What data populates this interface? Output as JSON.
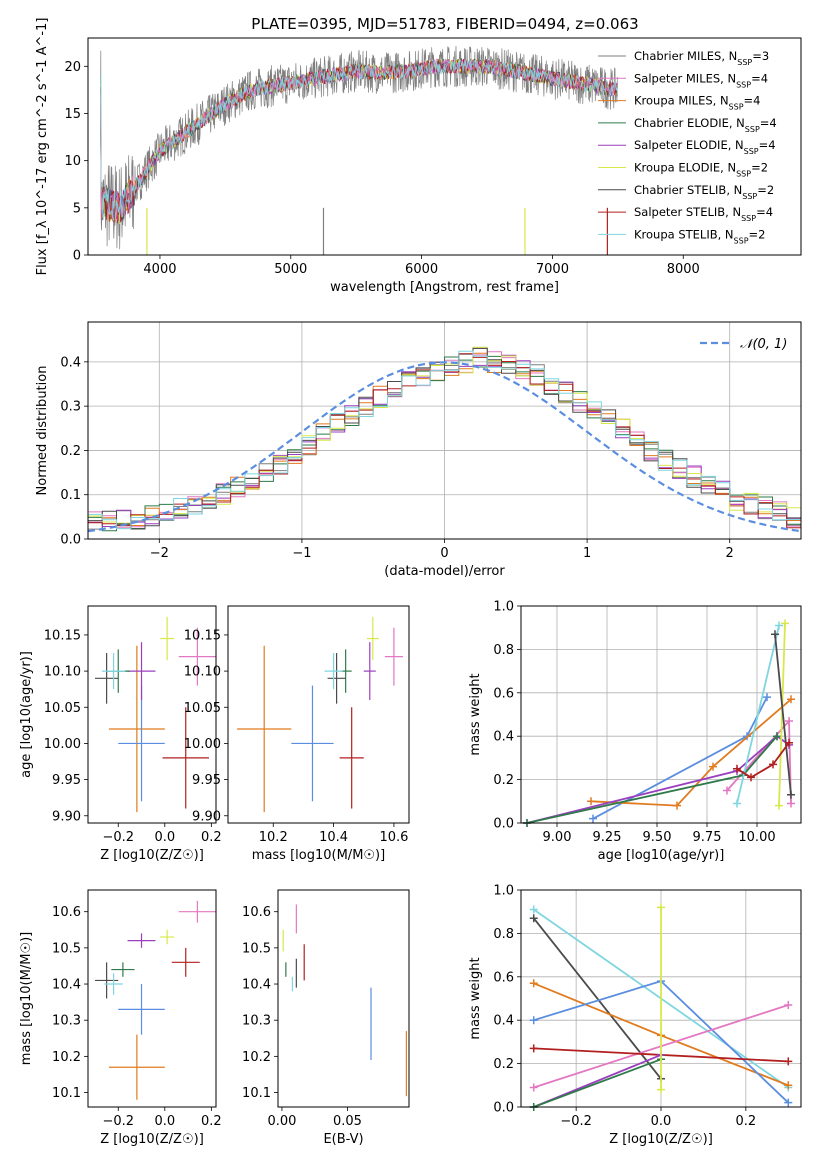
{
  "title": "PLATE=0395, MJD=51783, FIBERID=0494, z=0.063",
  "colors": {
    "Chabrier MILES": "#7f7f7f",
    "Salpeter MILES": "#e377c2",
    "Kroupa MILES": "#e07b1f",
    "Chabrier ELODIE": "#2f7a4a",
    "Salpeter ELODIE": "#9b3fbf",
    "Kroupa ELODIE": "#d8e84a",
    "Chabrier STELIB": "#4b4b4b",
    "Salpeter STELIB": "#b21f1f",
    "Kroupa STELIB": "#7fd6e0",
    "blue": "#5b8ee0"
  },
  "chart_data": [
    {
      "type": "line",
      "title": "PLATE=0395, MJD=51783, FIBERID=0494, z=0.063",
      "xlabel": "wavelength [Angstrom, rest frame]",
      "ylabel": "Flux [f_λ 10^-17 erg cm^-2 s^-1 A^-1]",
      "xlim": [
        3450,
        8900
      ],
      "ylim": [
        0,
        23
      ],
      "xticks": [
        "4000",
        "5000",
        "6000",
        "7000",
        "8000"
      ],
      "yticks": [
        "0",
        "5",
        "10",
        "15",
        "20"
      ],
      "legend_position": "top-right",
      "legend": [
        {
          "label": "Chabrier MILES, N_SSP=3",
          "color": "#7f7f7f"
        },
        {
          "label": "Salpeter MILES, N_SSP=4",
          "color": "#e377c2"
        },
        {
          "label": "Kroupa MILES, N_SSP=4",
          "color": "#e07b1f"
        },
        {
          "label": "Chabrier ELODIE, N_SSP=4",
          "color": "#2f7a4a"
        },
        {
          "label": "Salpeter ELODIE, N_SSP=4",
          "color": "#9b3fbf"
        },
        {
          "label": "Kroupa ELODIE, N_SSP=2",
          "color": "#d8e84a"
        },
        {
          "label": "Chabrier STELIB, N_SSP=2",
          "color": "#4b4b4b"
        },
        {
          "label": "Salpeter STELIB, N_SSP=4",
          "color": "#b21f1f"
        },
        {
          "label": "Kroupa STELIB, N_SSP=2",
          "color": "#7fd6e0"
        }
      ],
      "series_envelope": {
        "x": [
          3550,
          3700,
          3900,
          4000,
          4100,
          4300,
          4500,
          4700,
          4900,
          5100,
          5300,
          5500,
          5700,
          5900,
          6100,
          6300,
          6500,
          6700,
          6900,
          7100,
          7300,
          7500
        ],
        "y": [
          5.5,
          5.0,
          9.0,
          11.0,
          12.0,
          14.0,
          16.0,
          17.5,
          18.0,
          18.5,
          19.0,
          19.5,
          19.3,
          19.5,
          20.0,
          20.0,
          20.0,
          19.5,
          19.0,
          18.5,
          18.0,
          17.5
        ]
      }
    },
    {
      "type": "bar",
      "xlabel": "(data-model)/error",
      "ylabel": "Normed distribution",
      "xlim": [
        -2.5,
        2.5
      ],
      "ylim": [
        0,
        0.49
      ],
      "xticks": [
        "−2",
        "−1",
        "0",
        "1",
        "2"
      ],
      "yticks": [
        "0.0",
        "0.1",
        "0.2",
        "0.3",
        "0.4"
      ],
      "grid": true,
      "legend_position": "top-right",
      "legend": [
        {
          "label": "𝒩(0, 1)",
          "color": "#5b8ee0"
        }
      ],
      "bin_width": 0.1,
      "histogram_envelope": [
        0.04,
        0.04,
        0.04,
        0.045,
        0.05,
        0.06,
        0.07,
        0.08,
        0.09,
        0.1,
        0.115,
        0.13,
        0.15,
        0.17,
        0.19,
        0.21,
        0.235,
        0.26,
        0.28,
        0.3,
        0.32,
        0.34,
        0.36,
        0.37,
        0.38,
        0.39,
        0.4,
        0.41,
        0.4,
        0.39,
        0.38,
        0.37,
        0.35,
        0.33,
        0.31,
        0.29,
        0.27,
        0.25,
        0.22,
        0.2,
        0.18,
        0.16,
        0.14,
        0.12,
        0.11,
        0.09,
        0.08,
        0.07,
        0.06,
        0.05
      ],
      "reference_curve": "N(0,1)"
    },
    {
      "type": "scatter",
      "xlabel": "Z [log10(Z/Z☉)]",
      "ylabel": "age  [log10(age/yr)]",
      "xlim": [
        -0.33,
        0.22
      ],
      "ylim": [
        9.89,
        10.19
      ],
      "xticks": [
        "−0.2",
        "0.0",
        "0.2"
      ],
      "yticks": [
        "9.90",
        "9.95",
        "10.00",
        "10.05",
        "10.10",
        "10.15"
      ],
      "points": [
        {
          "name": "Kroupa MILES",
          "x": -0.12,
          "y": 10.02,
          "ex": 0.12,
          "ey": 0.115,
          "color": "#e07b1f"
        },
        {
          "name": "Blue",
          "x": -0.1,
          "y": 10.0,
          "ex": 0.1,
          "ey": 0.08,
          "color": "#5b8ee0"
        },
        {
          "name": "Salpeter STELIB",
          "x": 0.09,
          "y": 9.98,
          "ex": 0.1,
          "ey": 0.07,
          "color": "#b21f1f"
        },
        {
          "name": "Salpeter ELODIE",
          "x": -0.1,
          "y": 10.1,
          "ex": 0.06,
          "ey": 0.04,
          "color": "#9b3fbf"
        },
        {
          "name": "Chabrier ELODIE",
          "x": -0.2,
          "y": 10.1,
          "ex": 0.05,
          "ey": 0.03,
          "color": "#2f7a4a"
        },
        {
          "name": "Chabrier STELIB",
          "x": -0.25,
          "y": 10.09,
          "ex": 0.05,
          "ey": 0.035,
          "color": "#4b4b4b"
        },
        {
          "name": "Kroupa STELIB",
          "x": -0.22,
          "y": 10.1,
          "ex": 0.05,
          "ey": 0.025,
          "color": "#7fd6e0"
        },
        {
          "name": "Kroupa ELODIE",
          "x": 0.01,
          "y": 10.145,
          "ex": 0.03,
          "ey": 0.03,
          "color": "#d8e84a"
        },
        {
          "name": "Salpeter MILES",
          "x": 0.14,
          "y": 10.12,
          "ex": 0.08,
          "ey": 0.04,
          "color": "#e377c2"
        }
      ]
    },
    {
      "type": "scatter",
      "xlabel": "mass [log10(M/M☉)]",
      "ylabel": "",
      "xlim": [
        10.05,
        10.65
      ],
      "ylim": [
        9.89,
        10.19
      ],
      "xticks": [
        "10.2",
        "10.4",
        "10.6"
      ],
      "yticks": [
        "9.90",
        "9.95",
        "10.00",
        "10.05",
        "10.10",
        "10.15"
      ],
      "points": [
        {
          "name": "Kroupa MILES",
          "x": 10.17,
          "y": 10.02,
          "ex": 0.09,
          "ey": 0.115,
          "color": "#e07b1f"
        },
        {
          "name": "Blue",
          "x": 10.33,
          "y": 10.0,
          "ex": 0.07,
          "ey": 0.08,
          "color": "#5b8ee0"
        },
        {
          "name": "Salpeter STELIB",
          "x": 10.46,
          "y": 9.98,
          "ex": 0.04,
          "ey": 0.07,
          "color": "#b21f1f"
        },
        {
          "name": "Salpeter ELODIE",
          "x": 10.52,
          "y": 10.1,
          "ex": 0.02,
          "ey": 0.04,
          "color": "#9b3fbf"
        },
        {
          "name": "Chabrier ELODIE",
          "x": 10.44,
          "y": 10.1,
          "ex": 0.02,
          "ey": 0.03,
          "color": "#2f7a4a"
        },
        {
          "name": "Chabrier STELIB",
          "x": 10.41,
          "y": 10.09,
          "ex": 0.03,
          "ey": 0.035,
          "color": "#4b4b4b"
        },
        {
          "name": "Kroupa STELIB",
          "x": 10.4,
          "y": 10.1,
          "ex": 0.03,
          "ey": 0.025,
          "color": "#7fd6e0"
        },
        {
          "name": "Kroupa ELODIE",
          "x": 10.53,
          "y": 10.145,
          "ex": 0.02,
          "ey": 0.03,
          "color": "#d8e84a"
        },
        {
          "name": "Salpeter MILES",
          "x": 10.6,
          "y": 10.12,
          "ex": 0.03,
          "ey": 0.04,
          "color": "#e377c2"
        }
      ]
    },
    {
      "type": "line",
      "xlabel": "age  [log10(age/yr)]",
      "ylabel": "mass weight",
      "xlim": [
        8.82,
        10.22
      ],
      "ylim": [
        0,
        1.0
      ],
      "xticks": [
        "9.00",
        "9.25",
        "9.50",
        "9.75",
        "10.00"
      ],
      "yticks": [
        "0.0",
        "0.2",
        "0.4",
        "0.6",
        "0.8",
        "1.0"
      ],
      "grid": true,
      "series": [
        {
          "name": "Blue",
          "color": "#5b8ee0",
          "x": [
            9.18,
            9.95,
            10.05
          ],
          "y": [
            0.02,
            0.4,
            0.58
          ]
        },
        {
          "name": "Kroupa MILES",
          "color": "#e07b1f",
          "x": [
            9.17,
            9.6,
            9.78,
            10.17
          ],
          "y": [
            0.1,
            0.08,
            0.26,
            0.57
          ]
        },
        {
          "name": "Salpeter MILES",
          "color": "#e377c2",
          "x": [
            9.85,
            10.16,
            10.17
          ],
          "y": [
            0.15,
            0.47,
            0.09
          ]
        },
        {
          "name": "Salpeter ELODIE",
          "color": "#9b3fbf",
          "x": [
            8.85,
            9.9,
            10.1,
            10.16
          ],
          "y": [
            0.0,
            0.24,
            0.4,
            0.36
          ]
        },
        {
          "name": "Chabrier ELODIE",
          "color": "#2f7a4a",
          "x": [
            8.85,
            9.93,
            10.1
          ],
          "y": [
            0.0,
            0.22,
            0.4
          ]
        },
        {
          "name": "Kroupa STELIB",
          "color": "#7fd6e0",
          "x": [
            9.9,
            10.11
          ],
          "y": [
            0.09,
            0.91
          ]
        },
        {
          "name": "Kroupa ELODIE",
          "color": "#d8e84a",
          "x": [
            10.11,
            10.14
          ],
          "y": [
            0.08,
            0.92
          ]
        },
        {
          "name": "Chabrier STELIB",
          "color": "#4b4b4b",
          "x": [
            10.09,
            10.17
          ],
          "y": [
            0.87,
            0.13
          ]
        },
        {
          "name": "Salpeter STELIB",
          "color": "#b21f1f",
          "x": [
            9.9,
            9.97,
            10.08,
            10.16
          ],
          "y": [
            0.25,
            0.21,
            0.27,
            0.37
          ]
        }
      ]
    },
    {
      "type": "scatter",
      "xlabel": "Z [log10(Z/Z☉)]",
      "ylabel": "mass [log10(M/M☉)]",
      "xlim": [
        -0.33,
        0.22
      ],
      "ylim": [
        10.06,
        10.66
      ],
      "xticks": [
        "−0.2",
        "0.0",
        "0.2"
      ],
      "yticks": [
        "10.1",
        "10.2",
        "10.3",
        "10.4",
        "10.5",
        "10.6"
      ],
      "points": [
        {
          "name": "Kroupa MILES",
          "x": -0.12,
          "y": 10.17,
          "ex": 0.12,
          "ey": 0.09,
          "color": "#e07b1f"
        },
        {
          "name": "Blue",
          "x": -0.1,
          "y": 10.33,
          "ex": 0.1,
          "ey": 0.07,
          "color": "#5b8ee0"
        },
        {
          "name": "Salpeter STELIB",
          "x": 0.09,
          "y": 10.46,
          "ex": 0.06,
          "ey": 0.04,
          "color": "#b21f1f"
        },
        {
          "name": "Salpeter ELODIE",
          "x": -0.1,
          "y": 10.52,
          "ex": 0.06,
          "ey": 0.02,
          "color": "#9b3fbf"
        },
        {
          "name": "Chabrier ELODIE",
          "x": -0.18,
          "y": 10.44,
          "ex": 0.05,
          "ey": 0.02,
          "color": "#2f7a4a"
        },
        {
          "name": "Chabrier STELIB",
          "x": -0.25,
          "y": 10.41,
          "ex": 0.05,
          "ey": 0.05,
          "color": "#4b4b4b"
        },
        {
          "name": "Kroupa STELIB",
          "x": -0.22,
          "y": 10.4,
          "ex": 0.04,
          "ey": 0.03,
          "color": "#7fd6e0"
        },
        {
          "name": "Kroupa ELODIE",
          "x": 0.01,
          "y": 10.53,
          "ex": 0.03,
          "ey": 0.02,
          "color": "#d8e84a"
        },
        {
          "name": "Salpeter MILES",
          "x": 0.14,
          "y": 10.6,
          "ex": 0.08,
          "ey": 0.03,
          "color": "#e377c2"
        }
      ]
    },
    {
      "type": "scatter",
      "xlabel": "E(B-V)",
      "ylabel": "",
      "xlim": [
        -0.003,
        0.097
      ],
      "ylim": [
        10.06,
        10.66
      ],
      "xticks": [
        "0.00",
        "0.05"
      ],
      "yticks": [
        "10.1",
        "10.2",
        "10.3",
        "10.4",
        "10.5",
        "10.6"
      ],
      "points": [
        {
          "name": "Kroupa MILES",
          "x": 0.095,
          "y": 10.18,
          "ey": 0.09,
          "color": "#e07b1f"
        },
        {
          "name": "Blue",
          "x": 0.068,
          "y": 10.29,
          "ey": 0.1,
          "color": "#5b8ee0"
        },
        {
          "name": "Salpeter STELIB",
          "x": 0.017,
          "y": 10.46,
          "ey": 0.05,
          "color": "#b21f1f"
        },
        {
          "name": "Salpeter MILES",
          "x": 0.011,
          "y": 10.58,
          "ey": 0.04,
          "color": "#e377c2"
        },
        {
          "name": "Kroupa ELODIE",
          "x": 0.001,
          "y": 10.52,
          "ey": 0.03,
          "color": "#d8e84a"
        },
        {
          "name": "Chabrier ELODIE",
          "x": 0.003,
          "y": 10.44,
          "ey": 0.02,
          "color": "#2f7a4a"
        },
        {
          "name": "Chabrier STELIB",
          "x": 0.011,
          "y": 10.43,
          "ey": 0.04,
          "color": "#4b4b4b"
        },
        {
          "name": "Kroupa STELIB",
          "x": 0.008,
          "y": 10.4,
          "ey": 0.02,
          "color": "#7fd6e0"
        }
      ]
    },
    {
      "type": "line",
      "xlabel": "Z [log10(Z/Z☉)]",
      "ylabel": "mass weight",
      "xlim": [
        -0.33,
        0.33
      ],
      "ylim": [
        0,
        1.0
      ],
      "xticks": [
        "−0.2",
        "0.0",
        "0.2"
      ],
      "yticks": [
        "0.0",
        "0.2",
        "0.4",
        "0.6",
        "0.8",
        "1.0"
      ],
      "grid": true,
      "series": [
        {
          "name": "Kroupa STELIB",
          "color": "#7fd6e0",
          "x": [
            -0.3,
            0.3
          ],
          "y": [
            0.91,
            0.09
          ]
        },
        {
          "name": "Chabrier STELIB",
          "color": "#4b4b4b",
          "x": [
            -0.3,
            0.0
          ],
          "y": [
            0.87,
            0.13
          ]
        },
        {
          "name": "Kroupa MILES",
          "color": "#e07b1f",
          "x": [
            -0.3,
            0.0,
            0.3
          ],
          "y": [
            0.57,
            0.33,
            0.1
          ]
        },
        {
          "name": "Blue",
          "color": "#5b8ee0",
          "x": [
            -0.3,
            0.0,
            0.3
          ],
          "y": [
            0.4,
            0.58,
            0.02
          ]
        },
        {
          "name": "Salpeter MILES",
          "color": "#e377c2",
          "x": [
            -0.3,
            0.3
          ],
          "y": [
            0.09,
            0.47
          ]
        },
        {
          "name": "Salpeter STELIB",
          "color": "#b21f1f",
          "x": [
            -0.3,
            0.3
          ],
          "y": [
            0.27,
            0.21
          ]
        },
        {
          "name": "Salpeter ELODIE",
          "color": "#9b3fbf",
          "x": [
            -0.3,
            0.0
          ],
          "y": [
            0.0,
            0.24
          ]
        },
        {
          "name": "Chabrier ELODIE",
          "color": "#2f7a4a",
          "x": [
            -0.3,
            0.0
          ],
          "y": [
            0.0,
            0.22
          ]
        },
        {
          "name": "Kroupa ELODIE",
          "color": "#d8e84a",
          "x": [
            0.0,
            0.0
          ],
          "y": [
            0.08,
            0.92
          ]
        }
      ]
    }
  ]
}
